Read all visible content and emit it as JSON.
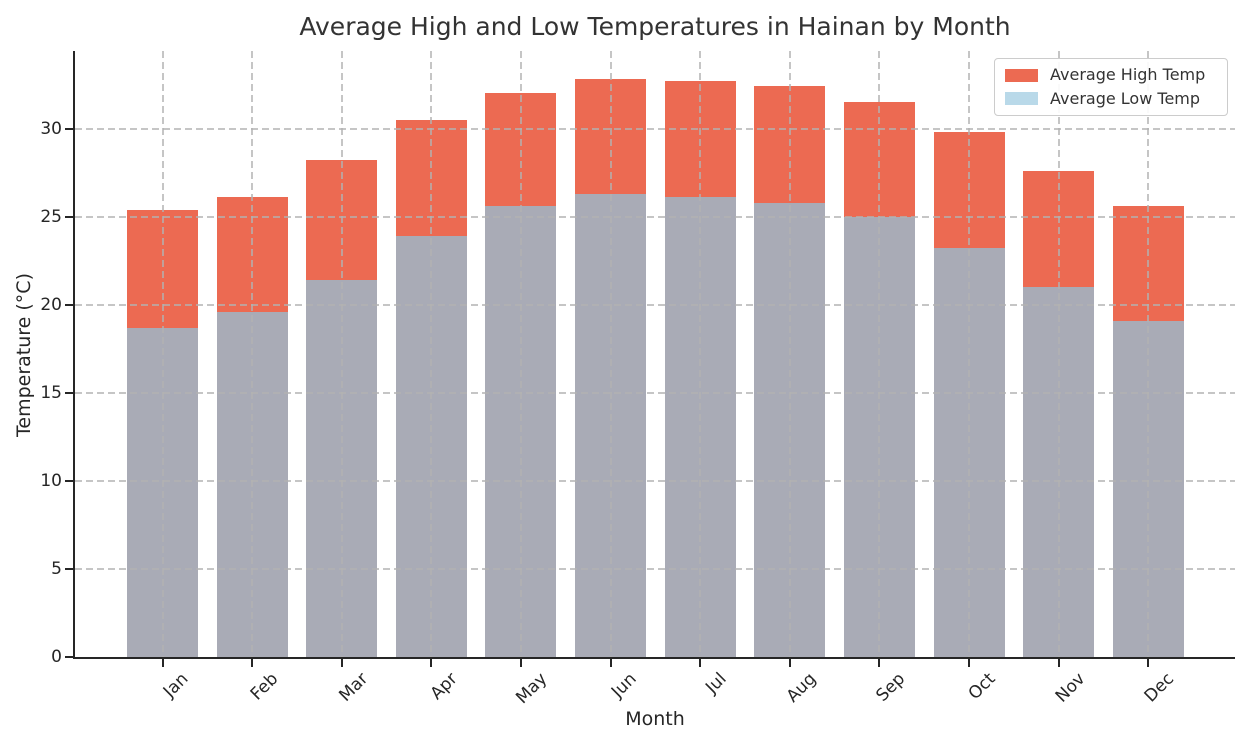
{
  "chart_data": {
    "type": "bar",
    "bar_style": "overlaid",
    "title": "Average High and Low Temperatures in Hainan by Month",
    "xlabel": "Month",
    "ylabel": "Temperature (°C)",
    "categories": [
      "Jan",
      "Feb",
      "Mar",
      "Apr",
      "May",
      "Jun",
      "Jul",
      "Aug",
      "Sep",
      "Oct",
      "Nov",
      "Dec"
    ],
    "series": [
      {
        "name": "Average High Temp",
        "values": [
          25.4,
          26.1,
          28.2,
          30.5,
          32.0,
          32.8,
          32.7,
          32.4,
          31.5,
          29.8,
          27.6,
          25.6
        ],
        "bar_color": "#EC6A52",
        "legend_color": "#EC6A52"
      },
      {
        "name": "Average Low Temp",
        "values": [
          18.7,
          19.6,
          21.4,
          23.9,
          25.6,
          26.3,
          26.1,
          25.8,
          25.0,
          23.2,
          21.0,
          19.1
        ],
        "bar_color": "#A9ABB6",
        "legend_color": "#B9D9E9"
      }
    ],
    "ylim": [
      0,
      34.4
    ],
    "yticks": [
      0,
      5,
      10,
      15,
      20,
      25,
      30
    ],
    "grid": "dashed, drawn above bars",
    "legend_position": "upper right",
    "axis_color": "#262626",
    "grid_color": "#B2B2B2",
    "background_color": "#FFFFFF"
  }
}
